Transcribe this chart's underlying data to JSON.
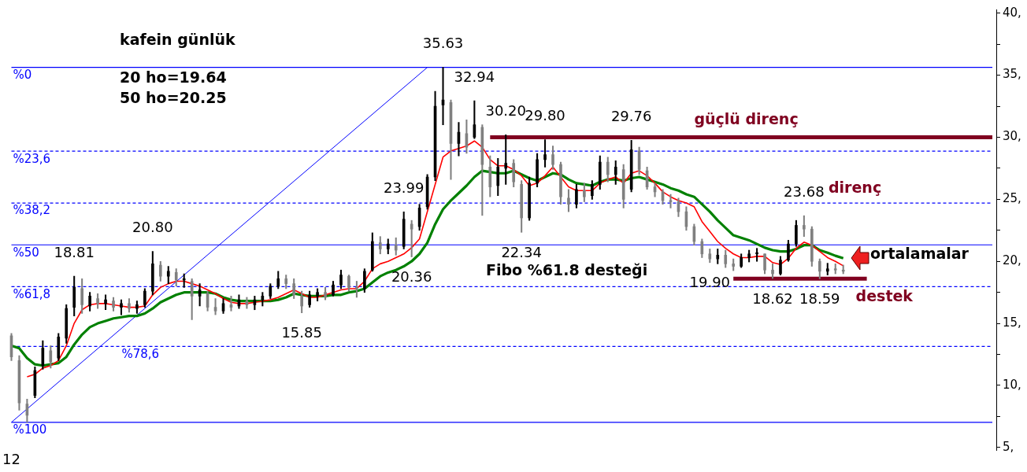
{
  "chart_data": {
    "type": "candlestick",
    "title": "kafein günlük",
    "categories": [
      "12",
      null,
      null,
      null,
      null,
      null,
      null,
      null,
      null,
      null,
      null,
      null,
      null,
      null,
      null,
      null,
      null,
      null,
      null,
      null,
      null,
      null,
      null,
      null,
      null,
      null,
      null,
      null,
      null,
      null,
      null,
      null,
      null,
      null,
      null,
      null,
      null,
      null,
      null,
      null,
      null,
      null,
      null,
      null,
      null,
      null,
      null,
      null,
      null,
      null,
      null,
      null,
      null,
      null,
      null,
      null,
      null,
      null,
      null,
      null,
      null,
      null,
      null,
      null,
      null,
      null,
      null,
      null,
      null,
      null,
      null,
      null,
      null,
      null,
      null,
      null,
      null,
      null,
      null,
      null,
      null,
      null,
      null,
      null,
      null,
      null,
      null,
      null,
      null,
      null,
      null,
      null,
      null,
      null,
      null,
      null,
      null,
      null,
      null,
      null,
      null,
      null,
      null,
      null,
      null,
      null,
      null,
      null,
      null,
      null,
      null,
      null,
      null,
      null,
      null,
      null,
      null,
      null,
      null,
      null,
      null,
      null,
      null,
      null,
      null,
      null
    ],
    "ohlc": [
      [
        14.0,
        14.2,
        12.0,
        12.3
      ],
      [
        12.0,
        12.4,
        8.0,
        8.6
      ],
      [
        8.5,
        8.9,
        7.03,
        7.6
      ],
      [
        9.2,
        11.5,
        9.0,
        11.2
      ],
      [
        11.6,
        13.6,
        11.3,
        13.0
      ],
      [
        12.8,
        13.2,
        11.4,
        11.9
      ],
      [
        12.2,
        14.2,
        12.0,
        13.9
      ],
      [
        13.8,
        16.5,
        13.4,
        16.2
      ],
      [
        16.3,
        18.81,
        15.6,
        17.9
      ],
      [
        17.8,
        18.6,
        15.8,
        16.5
      ],
      [
        16.4,
        17.5,
        16.0,
        17.2
      ],
      [
        17.0,
        17.4,
        16.2,
        16.6
      ],
      [
        16.6,
        17.3,
        16.1,
        16.9
      ],
      [
        16.8,
        17.1,
        16.0,
        16.3
      ],
      [
        16.3,
        16.9,
        15.7,
        16.6
      ],
      [
        16.6,
        17.0,
        15.9,
        16.2
      ],
      [
        16.2,
        16.8,
        15.8,
        16.5
      ],
      [
        16.5,
        17.8,
        16.3,
        17.6
      ],
      [
        17.6,
        20.8,
        17.3,
        19.8
      ],
      [
        19.7,
        20.0,
        18.4,
        18.8
      ],
      [
        18.8,
        19.6,
        18.2,
        19.2
      ],
      [
        19.1,
        19.4,
        18.0,
        18.5
      ],
      [
        18.5,
        19.0,
        17.9,
        18.6
      ],
      [
        18.4,
        18.6,
        15.3,
        17.2
      ],
      [
        17.2,
        18.2,
        16.4,
        17.7
      ],
      [
        17.4,
        17.6,
        16.0,
        16.3
      ],
      [
        16.3,
        17.0,
        15.7,
        16.0
      ],
      [
        16.0,
        17.0,
        15.8,
        16.6
      ],
      [
        16.5,
        17.2,
        16.0,
        16.3
      ],
      [
        16.4,
        17.3,
        16.2,
        16.9
      ],
      [
        16.8,
        17.1,
        16.2,
        16.5
      ],
      [
        16.5,
        17.2,
        16.1,
        16.9
      ],
      [
        16.9,
        17.5,
        16.4,
        17.2
      ],
      [
        17.2,
        18.2,
        17.0,
        18.0
      ],
      [
        18.0,
        19.2,
        17.8,
        18.6
      ],
      [
        18.6,
        18.9,
        17.8,
        18.2
      ],
      [
        18.2,
        18.6,
        17.0,
        17.3
      ],
      [
        17.2,
        17.6,
        15.85,
        16.4
      ],
      [
        16.5,
        17.6,
        16.3,
        17.3
      ],
      [
        17.2,
        17.8,
        16.8,
        17.5
      ],
      [
        17.5,
        17.9,
        16.9,
        17.1
      ],
      [
        17.3,
        18.4,
        17.2,
        18.1
      ],
      [
        18.1,
        19.3,
        17.8,
        18.9
      ],
      [
        18.8,
        18.9,
        17.6,
        17.9
      ],
      [
        17.9,
        18.4,
        17.1,
        17.8
      ],
      [
        17.8,
        19.4,
        17.5,
        19.2
      ],
      [
        19.3,
        22.3,
        19.2,
        21.6
      ],
      [
        21.5,
        22.0,
        20.6,
        21.0
      ],
      [
        21.0,
        21.8,
        20.6,
        21.4
      ],
      [
        21.3,
        21.9,
        20.5,
        20.9
      ],
      [
        21.2,
        23.99,
        21.0,
        23.4
      ],
      [
        23.0,
        23.3,
        20.36,
        22.6
      ],
      [
        22.8,
        24.6,
        22.5,
        24.3
      ],
      [
        24.4,
        27.0,
        24.2,
        26.8
      ],
      [
        26.8,
        33.7,
        26.5,
        32.5
      ],
      [
        32.6,
        35.63,
        31.0,
        33.0
      ],
      [
        32.8,
        33.0,
        26.6,
        29.5
      ],
      [
        29.5,
        31.2,
        28.5,
        30.4
      ],
      [
        30.3,
        31.4,
        28.7,
        29.2
      ],
      [
        30.0,
        32.94,
        29.9,
        31.0
      ],
      [
        30.8,
        31.0,
        23.7,
        27.8
      ],
      [
        27.6,
        28.5,
        25.2,
        26.0
      ],
      [
        26.1,
        28.3,
        25.3,
        27.6
      ],
      [
        27.5,
        30.2,
        26.2,
        27.9
      ],
      [
        27.9,
        28.2,
        26.0,
        26.4
      ],
      [
        26.2,
        26.5,
        22.34,
        23.5
      ],
      [
        23.5,
        26.8,
        23.3,
        26.3
      ],
      [
        26.3,
        28.7,
        26.0,
        28.2
      ],
      [
        28.2,
        29.8,
        27.6,
        28.6
      ],
      [
        28.6,
        29.3,
        27.4,
        27.8
      ],
      [
        27.8,
        28.0,
        24.6,
        25.2
      ],
      [
        25.1,
        25.8,
        24.0,
        24.6
      ],
      [
        24.6,
        26.2,
        24.3,
        25.8
      ],
      [
        25.7,
        26.3,
        24.8,
        25.2
      ],
      [
        25.3,
        26.5,
        25.0,
        26.2
      ],
      [
        26.2,
        28.5,
        25.8,
        28.0
      ],
      [
        28.0,
        28.4,
        26.4,
        27.0
      ],
      [
        27.0,
        28.1,
        26.2,
        27.6
      ],
      [
        27.4,
        27.8,
        24.3,
        25.0
      ],
      [
        25.8,
        29.76,
        25.6,
        29.0
      ],
      [
        28.9,
        29.2,
        27.0,
        27.4
      ],
      [
        27.3,
        27.6,
        25.8,
        26.0
      ],
      [
        26.0,
        26.3,
        25.2,
        25.6
      ],
      [
        25.6,
        25.8,
        24.6,
        24.9
      ],
      [
        24.9,
        25.4,
        24.3,
        24.8
      ],
      [
        24.8,
        25.1,
        23.6,
        24.0
      ],
      [
        24.0,
        24.4,
        22.5,
        22.8
      ],
      [
        22.8,
        23.0,
        21.3,
        21.6
      ],
      [
        21.6,
        21.8,
        20.3,
        20.6
      ],
      [
        20.6,
        21.0,
        19.9,
        20.2
      ],
      [
        20.2,
        21.0,
        19.8,
        20.5
      ],
      [
        20.5,
        20.9,
        19.5,
        19.8
      ],
      [
        19.8,
        20.2,
        19.25,
        19.6
      ],
      [
        19.6,
        20.6,
        19.5,
        20.3
      ],
      [
        20.3,
        20.9,
        19.95,
        20.6
      ],
      [
        20.6,
        21.05,
        20.0,
        20.7
      ],
      [
        20.6,
        20.6,
        19.0,
        19.3
      ],
      [
        19.3,
        19.8,
        18.62,
        19.0
      ],
      [
        19.0,
        20.4,
        18.9,
        20.1
      ],
      [
        20.1,
        21.7,
        20.0,
        21.4
      ],
      [
        21.4,
        23.3,
        21.2,
        22.9
      ],
      [
        22.9,
        23.68,
        22.0,
        22.6
      ],
      [
        22.6,
        22.8,
        19.6,
        20.0
      ],
      [
        20.0,
        20.2,
        18.59,
        19.2
      ],
      [
        19.2,
        19.85,
        18.9,
        19.4
      ],
      [
        19.4,
        19.8,
        19.0,
        19.3
      ],
      [
        19.3,
        19.7,
        19.0,
        19.2
      ],
      null,
      null,
      null,
      null,
      null,
      null,
      null,
      null,
      null,
      null,
      null,
      null,
      null,
      null,
      null,
      null,
      null,
      null,
      null
    ],
    "colors": [
      "#808080",
      "#808080",
      "#808080",
      "#000000",
      "#000000",
      "#808080",
      "#000000",
      "#000000",
      "#000000",
      "#808080",
      "#000000",
      "#808080",
      "#000000",
      "#808080",
      "#000000",
      "#808080",
      "#000000",
      "#000000",
      "#000000",
      "#808080",
      "#000000",
      "#808080",
      "#000000",
      "#808080",
      "#000000",
      "#808080",
      "#808080",
      "#000000",
      "#808080",
      "#000000",
      "#808080",
      "#000000",
      "#000000",
      "#000000",
      "#000000",
      "#808080",
      "#808080",
      "#808080",
      "#000000",
      "#000000",
      "#808080",
      "#000000",
      "#000000",
      "#808080",
      "#808080",
      "#000000",
      "#000000",
      "#808080",
      "#000000",
      "#808080",
      "#000000",
      "#808080",
      "#000000",
      "#000000",
      "#000000",
      "#000000",
      "#808080",
      "#000000",
      "#808080",
      "#000000",
      "#808080",
      "#808080",
      "#000000",
      "#000000",
      "#808080",
      "#808080",
      "#000000",
      "#000000",
      "#000000",
      "#808080",
      "#808080",
      "#808080",
      "#000000",
      "#808080",
      "#000000",
      "#000000",
      "#808080",
      "#000000",
      "#808080",
      "#000000",
      "#808080",
      "#808080",
      "#808080",
      "#808080",
      "#808080",
      "#808080",
      "#808080",
      "#808080",
      "#808080",
      "#808080",
      "#000000",
      "#808080",
      "#808080",
      "#000000",
      "#000000",
      "#000000",
      "#808080",
      "#808080",
      "#000000",
      "#000000",
      "#000000",
      "#808080",
      "#808080",
      "#808080",
      "#000000",
      "#808080",
      "#808080",
      null,
      null,
      null,
      null,
      null,
      null,
      null,
      null,
      null,
      null,
      null,
      null,
      null,
      null,
      null,
      null,
      null,
      null,
      null
    ],
    "series": [
      {
        "type": "line",
        "color": "#ff0000",
        "values": [
          null,
          null,
          10.7,
          10.9,
          11.4,
          11.6,
          12.0,
          13.2,
          15.0,
          16.1,
          16.5,
          16.6,
          16.6,
          16.5,
          16.4,
          16.3,
          16.3,
          16.4,
          17.3,
          17.9,
          18.2,
          18.4,
          18.4,
          18.2,
          18.0,
          17.7,
          17.4,
          17.0,
          16.7,
          16.6,
          16.6,
          16.7,
          16.8,
          16.9,
          17.1,
          17.4,
          17.7,
          17.4,
          17.1,
          17.1,
          17.3,
          17.5,
          17.7,
          17.8,
          17.8,
          18.4,
          19.4,
          19.8,
          20.0,
          20.3,
          20.6,
          21.1,
          21.8,
          null,
          null,
          28.4,
          28.9,
          29.1,
          29.3,
          29.7,
          29.2,
          28.2,
          27.7,
          27.7,
          27.4,
          26.9,
          26.1,
          26.3,
          26.9,
          27.6,
          26.8,
          26.0,
          25.7,
          25.7,
          25.7,
          26.3,
          26.6,
          26.8,
          26.3,
          27.1,
          27.3,
          26.9,
          26.3,
          25.6,
          25.2,
          24.9,
          24.7,
          24.4,
          23.2,
          22.4,
          21.6,
          21.05,
          20.6,
          20.3,
          20.3,
          20.4,
          20.4,
          19.9,
          19.75,
          20.25,
          21.05,
          21.55,
          21.3,
          20.8,
          20.3,
          20.0,
          19.64,
          null,
          null,
          null,
          null,
          null,
          null,
          null,
          null,
          null,
          null,
          null,
          null,
          null,
          null,
          null,
          null,
          null,
          null,
          null
        ]
      },
      {
        "type": "line",
        "color": "#008000",
        "values": [
          13.2,
          13.0,
          12.2,
          11.7,
          11.6,
          11.7,
          11.8,
          12.3,
          13.3,
          14.1,
          14.7,
          15.0,
          15.2,
          15.4,
          15.5,
          15.6,
          15.6,
          15.8,
          16.2,
          16.7,
          17.0,
          17.3,
          17.5,
          17.5,
          17.5,
          17.5,
          17.4,
          17.1,
          16.9,
          16.8,
          16.8,
          16.8,
          16.8,
          16.8,
          16.9,
          17.1,
          17.4,
          17.3,
          17.2,
          17.2,
          17.2,
          17.3,
          17.3,
          17.5,
          17.6,
          17.8,
          18.3,
          18.8,
          19.1,
          19.3,
          19.6,
          20.0,
          20.6,
          21.5,
          23.0,
          24.2,
          24.9,
          25.5,
          26.1,
          26.8,
          27.3,
          27.2,
          27.1,
          27.1,
          27.3,
          27.0,
          26.7,
          26.5,
          26.8,
          27.1,
          27.0,
          26.6,
          26.3,
          26.2,
          26.1,
          26.4,
          26.6,
          26.6,
          26.5,
          26.7,
          26.8,
          26.6,
          26.4,
          26.2,
          25.9,
          25.7,
          25.4,
          25.2,
          24.6,
          24.0,
          23.3,
          22.7,
          22.1,
          21.9,
          21.7,
          21.4,
          21.1,
          20.9,
          20.8,
          20.8,
          21.0,
          21.3,
          21.3,
          20.9,
          20.7,
          20.45,
          20.25,
          null,
          null,
          null,
          null,
          null,
          null,
          null,
          null,
          null,
          null,
          null,
          null,
          null,
          null,
          null,
          null,
          null,
          null,
          null
        ]
      },
      {
        "type": "line",
        "color": "#0000ff",
        "values": [
          7.03,
          null,
          null,
          null,
          null,
          null,
          null,
          null,
          null,
          null,
          null,
          null,
          null,
          null,
          null,
          null,
          null,
          null,
          null,
          null,
          null,
          null,
          null,
          null,
          null,
          null,
          null,
          null,
          null,
          null,
          null,
          null,
          null,
          null,
          null,
          null,
          null,
          null,
          null,
          null,
          null,
          null,
          null,
          null,
          null,
          null,
          null,
          null,
          null,
          null,
          null,
          null,
          null,
          35.63,
          null,
          null,
          null,
          null,
          null,
          null,
          null,
          null,
          null,
          null,
          null,
          null,
          null,
          null,
          null,
          null,
          null,
          null,
          null,
          null,
          null,
          null,
          null,
          null,
          null,
          null,
          null,
          null,
          null,
          null,
          null,
          null,
          null,
          null,
          null,
          null,
          null,
          null,
          null,
          null,
          null,
          null,
          null,
          null,
          null,
          null,
          null,
          null,
          null,
          null,
          null,
          null,
          null,
          null,
          null,
          null,
          null,
          null,
          null,
          null,
          null,
          null,
          null,
          null,
          null,
          null,
          null,
          null,
          null,
          null,
          null,
          null
        ]
      },
      {
        "type": "line",
        "name": "güçlü direnç",
        "color": "#800020",
        "values": [
          null,
          null,
          null,
          null,
          null,
          null,
          null,
          null,
          null,
          null,
          null,
          null,
          null,
          null,
          null,
          null,
          null,
          null,
          null,
          null,
          null,
          null,
          null,
          null,
          null,
          null,
          null,
          null,
          null,
          null,
          null,
          null,
          null,
          null,
          null,
          null,
          null,
          null,
          null,
          null,
          null,
          null,
          null,
          null,
          null,
          null,
          null,
          null,
          null,
          null,
          null,
          null,
          null,
          null,
          null,
          null,
          null,
          null,
          null,
          null,
          null,
          30,
          null,
          null,
          null,
          null,
          null,
          null,
          null,
          null,
          null,
          null,
          null,
          null,
          null,
          null,
          null,
          null,
          null,
          null,
          null,
          null,
          null,
          null,
          null,
          null,
          null,
          null,
          null,
          null,
          null,
          null,
          null,
          null,
          null,
          null,
          null,
          null,
          null,
          null,
          null,
          null,
          null,
          null,
          null,
          null,
          null,
          null,
          null,
          null,
          null,
          null,
          null,
          null,
          null,
          null,
          null,
          null,
          null,
          null,
          null,
          null,
          null,
          null,
          null,
          30
        ]
      },
      {
        "type": "line",
        "name": "destek",
        "color": "#800020",
        "values": [
          null,
          null,
          null,
          null,
          null,
          null,
          null,
          null,
          null,
          null,
          null,
          null,
          null,
          null,
          null,
          null,
          null,
          null,
          null,
          null,
          null,
          null,
          null,
          null,
          null,
          null,
          null,
          null,
          null,
          null,
          null,
          null,
          null,
          null,
          null,
          null,
          null,
          null,
          null,
          null,
          null,
          null,
          null,
          null,
          null,
          null,
          null,
          null,
          null,
          null,
          null,
          null,
          null,
          null,
          null,
          null,
          null,
          null,
          null,
          null,
          null,
          null,
          null,
          null,
          null,
          null,
          null,
          null,
          null,
          null,
          null,
          null,
          null,
          null,
          null,
          null,
          null,
          null,
          null,
          null,
          null,
          null,
          null,
          null,
          null,
          null,
          null,
          null,
          null,
          null,
          null,
          null,
          18.6,
          null,
          null,
          null,
          null,
          null,
          null,
          null,
          null,
          null,
          null,
          null,
          null,
          null,
          null,
          null,
          null,
          18.6,
          null,
          null,
          null,
          null,
          null,
          null,
          null,
          null,
          null,
          null,
          null,
          null,
          null,
          null,
          null,
          null
        ]
      },
      {
        "type": "line",
        "name": "%0",
        "color": "#0000ff",
        "line_style": "solid",
        "values": [
          35.63,
          null,
          null,
          null,
          null,
          null,
          null,
          null,
          null,
          null,
          null,
          null,
          null,
          null,
          null,
          null,
          null,
          null,
          null,
          null,
          null,
          null,
          null,
          null,
          null,
          null,
          null,
          null,
          null,
          null,
          null,
          null,
          null,
          null,
          null,
          null,
          null,
          null,
          null,
          null,
          null,
          null,
          null,
          null,
          null,
          null,
          null,
          null,
          null,
          null,
          null,
          null,
          null,
          null,
          null,
          null,
          null,
          null,
          null,
          null,
          null,
          null,
          null,
          null,
          null,
          null,
          null,
          null,
          null,
          null,
          null,
          null,
          null,
          null,
          null,
          null,
          null,
          null,
          null,
          null,
          null,
          null,
          null,
          null,
          null,
          null,
          null,
          null,
          null,
          null,
          null,
          null,
          null,
          null,
          null,
          null,
          null,
          null,
          null,
          null,
          null,
          null,
          null,
          null,
          null,
          null,
          null,
          null,
          null,
          null,
          null,
          null,
          null,
          null,
          null,
          null,
          null,
          null,
          null,
          null,
          null,
          null,
          null,
          null,
          null,
          35.63
        ]
      },
      {
        "type": "line",
        "name": "%23,6",
        "color": "#0000ff",
        "line_style": "dashed",
        "values": [
          28.88,
          null,
          null,
          null,
          null,
          null,
          null,
          null,
          null,
          null,
          null,
          null,
          null,
          null,
          null,
          null,
          null,
          null,
          null,
          null,
          null,
          null,
          null,
          null,
          null,
          null,
          null,
          null,
          null,
          null,
          null,
          null,
          null,
          null,
          null,
          null,
          null,
          null,
          null,
          null,
          null,
          null,
          null,
          null,
          null,
          null,
          null,
          null,
          null,
          null,
          null,
          null,
          null,
          null,
          null,
          null,
          null,
          null,
          null,
          null,
          null,
          null,
          null,
          null,
          null,
          null,
          null,
          null,
          null,
          null,
          null,
          null,
          null,
          null,
          null,
          null,
          null,
          null,
          null,
          null,
          null,
          null,
          null,
          null,
          null,
          null,
          null,
          null,
          null,
          null,
          null,
          null,
          null,
          null,
          null,
          null,
          null,
          null,
          null,
          null,
          null,
          null,
          null,
          null,
          null,
          null,
          null,
          null,
          null,
          null,
          null,
          null,
          null,
          null,
          null,
          null,
          null,
          null,
          null,
          null,
          null,
          null,
          null,
          null,
          null,
          28.88
        ]
      },
      {
        "type": "line",
        "name": "%38,2",
        "color": "#0000ff",
        "line_style": "dashed",
        "values": [
          24.7,
          null,
          null,
          null,
          null,
          null,
          null,
          null,
          null,
          null,
          null,
          null,
          null,
          null,
          null,
          null,
          null,
          null,
          null,
          null,
          null,
          null,
          null,
          null,
          null,
          null,
          null,
          null,
          null,
          null,
          null,
          null,
          null,
          null,
          null,
          null,
          null,
          null,
          null,
          null,
          null,
          null,
          null,
          null,
          null,
          null,
          null,
          null,
          null,
          null,
          null,
          null,
          null,
          null,
          null,
          null,
          null,
          null,
          null,
          null,
          null,
          null,
          null,
          null,
          null,
          null,
          null,
          null,
          null,
          null,
          null,
          null,
          null,
          null,
          null,
          null,
          null,
          null,
          null,
          null,
          null,
          null,
          null,
          null,
          null,
          null,
          null,
          null,
          null,
          null,
          null,
          null,
          null,
          null,
          null,
          null,
          null,
          null,
          null,
          null,
          null,
          null,
          null,
          null,
          null,
          null,
          null,
          null,
          null,
          null,
          null,
          null,
          null,
          null,
          null,
          null,
          null,
          null,
          null,
          null,
          null,
          null,
          null,
          null,
          null,
          24.7
        ]
      },
      {
        "type": "line",
        "name": "%50",
        "color": "#0000ff",
        "line_style": "solid",
        "values": [
          21.33,
          null,
          null,
          null,
          null,
          null,
          null,
          null,
          null,
          null,
          null,
          null,
          null,
          null,
          null,
          null,
          null,
          null,
          null,
          null,
          null,
          null,
          null,
          null,
          null,
          null,
          null,
          null,
          null,
          null,
          null,
          null,
          null,
          null,
          null,
          null,
          null,
          null,
          null,
          null,
          null,
          null,
          null,
          null,
          null,
          null,
          null,
          null,
          null,
          null,
          null,
          null,
          null,
          null,
          null,
          null,
          null,
          null,
          null,
          null,
          null,
          null,
          null,
          null,
          null,
          null,
          null,
          null,
          null,
          null,
          null,
          null,
          null,
          null,
          null,
          null,
          null,
          null,
          null,
          null,
          null,
          null,
          null,
          null,
          null,
          null,
          null,
          null,
          null,
          null,
          null,
          null,
          null,
          null,
          null,
          null,
          null,
          null,
          null,
          null,
          null,
          null,
          null,
          null,
          null,
          null,
          null,
          null,
          null,
          null,
          null,
          null,
          null,
          null,
          null,
          null,
          null,
          null,
          null,
          null,
          null,
          null,
          null,
          null,
          null,
          21.33
        ]
      },
      {
        "type": "line",
        "name": "%61,8",
        "color": "#0000ff",
        "line_style": "dashed",
        "values": [
          17.96,
          null,
          null,
          null,
          null,
          null,
          null,
          null,
          null,
          null,
          null,
          null,
          null,
          null,
          null,
          null,
          null,
          null,
          null,
          null,
          null,
          null,
          null,
          null,
          null,
          null,
          null,
          null,
          null,
          null,
          null,
          null,
          null,
          null,
          null,
          null,
          null,
          null,
          null,
          null,
          null,
          null,
          null,
          null,
          null,
          null,
          null,
          null,
          null,
          null,
          null,
          null,
          null,
          null,
          null,
          null,
          null,
          null,
          null,
          null,
          null,
          null,
          null,
          null,
          null,
          null,
          null,
          null,
          null,
          null,
          null,
          null,
          null,
          null,
          null,
          null,
          null,
          null,
          null,
          null,
          null,
          null,
          null,
          null,
          null,
          null,
          null,
          null,
          null,
          null,
          null,
          null,
          null,
          null,
          null,
          null,
          null,
          null,
          null,
          null,
          null,
          null,
          null,
          null,
          null,
          null,
          null,
          null,
          null,
          null,
          null,
          null,
          null,
          null,
          null,
          null,
          null,
          null,
          null,
          null,
          null,
          null,
          null,
          null,
          null,
          17.96
        ]
      },
      {
        "type": "line",
        "name": "%78,6",
        "color": "#0000ff",
        "line_style": "dashed",
        "values": [
          13.15,
          null,
          null,
          null,
          null,
          null,
          null,
          null,
          null,
          null,
          null,
          null,
          null,
          null,
          null,
          null,
          null,
          null,
          null,
          null,
          null,
          null,
          null,
          null,
          null,
          null,
          null,
          null,
          null,
          null,
          null,
          null,
          null,
          null,
          null,
          null,
          null,
          null,
          null,
          null,
          null,
          null,
          null,
          null,
          null,
          null,
          null,
          null,
          null,
          null,
          null,
          null,
          null,
          null,
          null,
          null,
          null,
          null,
          null,
          null,
          null,
          null,
          null,
          null,
          null,
          null,
          null,
          null,
          null,
          null,
          null,
          null,
          null,
          null,
          null,
          null,
          null,
          null,
          null,
          null,
          null,
          null,
          null,
          null,
          null,
          null,
          null,
          null,
          null,
          null,
          null,
          null,
          null,
          null,
          null,
          null,
          null,
          null,
          null,
          null,
          null,
          null,
          null,
          null,
          null,
          null,
          null,
          null,
          null,
          null,
          null,
          null,
          null,
          null,
          null,
          null,
          null,
          null,
          null,
          null,
          null,
          null,
          null,
          null,
          null,
          13.15
        ]
      },
      {
        "type": "line",
        "name": "%100",
        "color": "#0000ff",
        "line_style": "solid",
        "values": [
          7.03,
          null,
          null,
          null,
          null,
          null,
          null,
          null,
          null,
          null,
          null,
          null,
          null,
          null,
          null,
          null,
          null,
          null,
          null,
          null,
          null,
          null,
          null,
          null,
          null,
          null,
          null,
          null,
          null,
          null,
          null,
          null,
          null,
          null,
          null,
          null,
          null,
          null,
          null,
          null,
          null,
          null,
          null,
          null,
          null,
          null,
          null,
          null,
          null,
          null,
          null,
          null,
          null,
          null,
          null,
          null,
          null,
          null,
          null,
          null,
          null,
          null,
          null,
          null,
          null,
          null,
          null,
          null,
          null,
          null,
          null,
          null,
          null,
          null,
          null,
          null,
          null,
          null,
          null,
          null,
          null,
          null,
          null,
          null,
          null,
          null,
          null,
          null,
          null,
          null,
          null,
          null,
          null,
          null,
          null,
          null,
          null,
          null,
          null,
          null,
          null,
          null,
          null,
          null,
          null,
          null,
          null,
          null,
          null,
          null,
          null,
          null,
          null,
          null,
          null,
          null,
          null,
          null,
          null,
          null,
          null,
          null,
          null,
          null,
          null,
          7.03
        ]
      }
    ],
    "ylim": [
      4.8,
      40.3
    ],
    "yticks": [
      {
        "value": 5,
        "label": "5,"
      },
      {
        "value": 7.5,
        "label": null
      },
      {
        "value": 10,
        "label": "10,"
      },
      {
        "value": 12.5,
        "label": null
      },
      {
        "value": 15,
        "label": "15,"
      },
      {
        "value": 17.5,
        "label": null
      },
      {
        "value": 20,
        "label": "20,"
      },
      {
        "value": 22.5,
        "label": null
      },
      {
        "value": 25,
        "label": "25,"
      },
      {
        "value": 27.5,
        "label": null
      },
      {
        "value": 30,
        "label": "30,"
      },
      {
        "value": 32.5,
        "label": null
      },
      {
        "value": 35,
        "label": "35,"
      },
      {
        "value": 37.5,
        "label": null
      },
      {
        "value": 40,
        "label": "40,"
      }
    ],
    "annotations": [
      {
        "text": "35.63",
        "y": 35.63
      },
      {
        "text": "32.94",
        "y": 32.94
      },
      {
        "text": "30.20",
        "y": 30.2
      },
      {
        "text": "29.80",
        "y": 29.8
      },
      {
        "text": "29.76",
        "y": 29.76
      },
      {
        "text": "23.99",
        "y": 23.99
      },
      {
        "text": "20.80",
        "y": 20.8
      },
      {
        "text": "18.81",
        "y": 18.81
      },
      {
        "text": "22.34",
        "y": 22.34
      },
      {
        "text": "20.36",
        "y": 20.36
      },
      {
        "text": "15.85",
        "y": 15.85
      },
      {
        "text": "19.90",
        "y": 19.9
      },
      {
        "text": "18.62",
        "y": 18.62
      },
      {
        "text": "18.59",
        "y": 18.59
      },
      {
        "text": "23.68",
        "y": 23.68
      },
      "20 ho=19.64",
      "50 ho=20.25",
      "direnç",
      "ortalamalar",
      "Fibo %61.8 desteği"
    ],
    "grid": false,
    "legend": false
  }
}
